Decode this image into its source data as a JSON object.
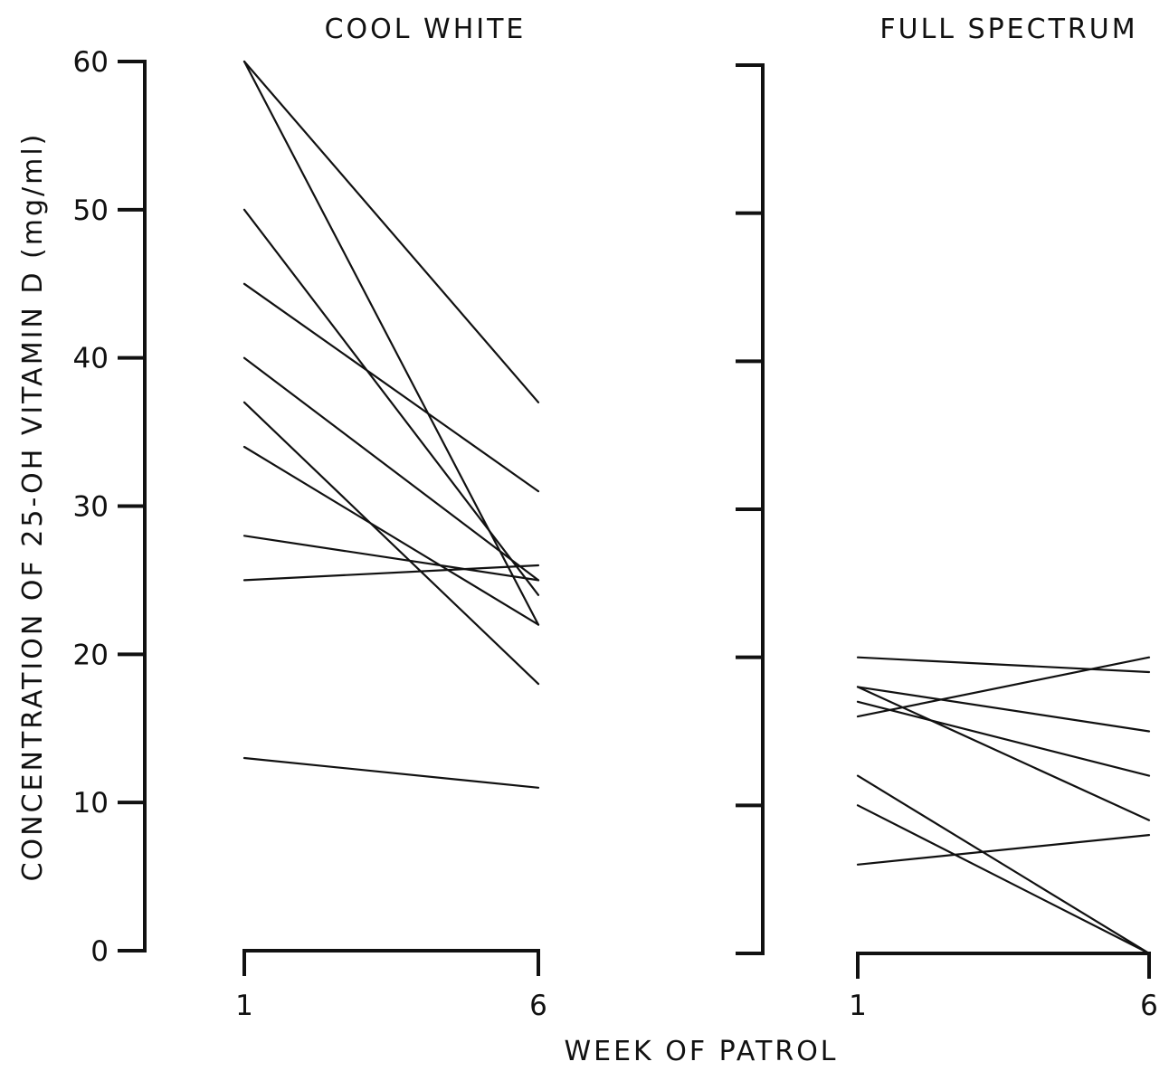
{
  "chart_data": {
    "type": "line",
    "ylabel": "CONCENTRATION OF 25-OH VITAMIN D (mg/ml)",
    "xlabel": "WEEK OF PATROL",
    "ylim": [
      0,
      60
    ],
    "yticks": [
      "0",
      "10",
      "20",
      "30",
      "40",
      "50",
      "60"
    ],
    "x": [
      1,
      6
    ],
    "xtick_labels": [
      "1",
      "6"
    ],
    "grid": false,
    "panels": [
      {
        "title": "COOL WHITE",
        "series": [
          {
            "values": [
              60,
              37
            ]
          },
          {
            "values": [
              60,
              22
            ]
          },
          {
            "values": [
              50,
              24
            ]
          },
          {
            "values": [
              45,
              31
            ]
          },
          {
            "values": [
              40,
              25
            ]
          },
          {
            "values": [
              37,
              18
            ]
          },
          {
            "values": [
              34,
              22
            ]
          },
          {
            "values": [
              28,
              25
            ]
          },
          {
            "values": [
              25,
              26
            ]
          },
          {
            "values": [
              13,
              11
            ]
          }
        ]
      },
      {
        "title": "FULL SPECTRUM",
        "series": [
          {
            "values": [
              20,
              19
            ]
          },
          {
            "values": [
              16,
              20
            ]
          },
          {
            "values": [
              18,
              15
            ]
          },
          {
            "values": [
              17,
              12
            ]
          },
          {
            "values": [
              18,
              9
            ]
          },
          {
            "values": [
              12,
              0
            ]
          },
          {
            "values": [
              10,
              0
            ]
          },
          {
            "values": [
              6,
              8
            ]
          }
        ]
      }
    ]
  }
}
